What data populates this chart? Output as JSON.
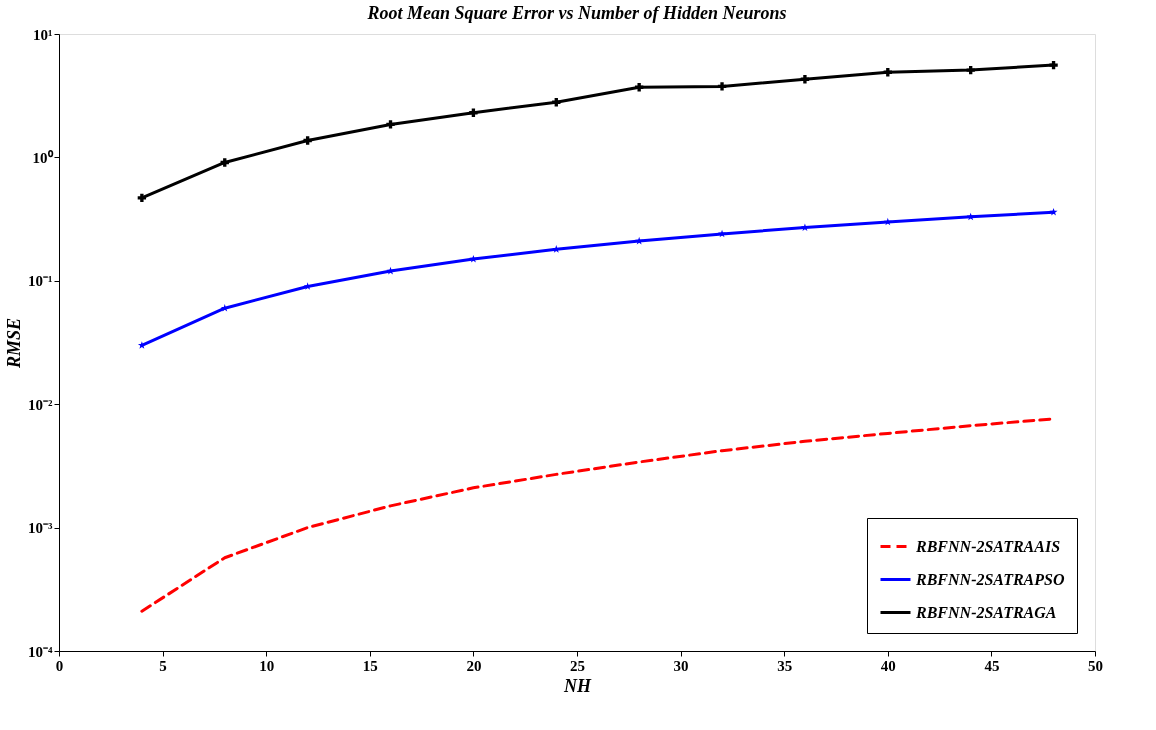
{
  "chart_data": {
    "type": "line",
    "title": "Root Mean Square Error vs Number of Hidden Neurons",
    "xlabel": "NH",
    "ylabel": "RMSE",
    "x": [
      4,
      8,
      12,
      16,
      20,
      24,
      28,
      32,
      36,
      40,
      44,
      48
    ],
    "series": [
      {
        "name": "RBFNN-2SATRAAIS",
        "color": "#ff0000",
        "line_style": "dashed",
        "marker": "none",
        "values": [
          0.00021,
          0.00057,
          0.001,
          0.0015,
          0.0021,
          0.0027,
          0.0034,
          0.0042,
          0.005,
          0.0058,
          0.0067,
          0.0076
        ]
      },
      {
        "name": "RBFNN-2SATRAPSO",
        "color": "#0000ff",
        "line_style": "solid",
        "marker": "star",
        "values": [
          0.03,
          0.06,
          0.09,
          0.12,
          0.15,
          0.18,
          0.21,
          0.24,
          0.27,
          0.3,
          0.33,
          0.36
        ]
      },
      {
        "name": "RBFNN-2SATRAGA",
        "color": "#000000",
        "line_style": "solid",
        "marker": "cross",
        "values": [
          0.47,
          0.91,
          1.37,
          1.85,
          2.3,
          2.8,
          3.7,
          3.76,
          4.3,
          4.9,
          5.1,
          5.6
        ]
      }
    ],
    "log": "y",
    "grid": false,
    "legend": "bottom right",
    "xlim": [
      0,
      50
    ],
    "xticks": [
      0,
      5,
      10,
      15,
      20,
      25,
      30,
      35,
      40,
      45,
      50
    ],
    "ylim": [
      0.0001,
      10
    ],
    "yticks": [
      {
        "value": 0.0001,
        "label": "10⁻⁴"
      },
      {
        "value": 0.001,
        "label": "10⁻³"
      },
      {
        "value": 0.01,
        "label": "10⁻²"
      },
      {
        "value": 0.1,
        "label": "10⁻¹"
      },
      {
        "value": 1,
        "label": "10⁰"
      },
      {
        "value": 10,
        "label": "10¹"
      }
    ]
  }
}
